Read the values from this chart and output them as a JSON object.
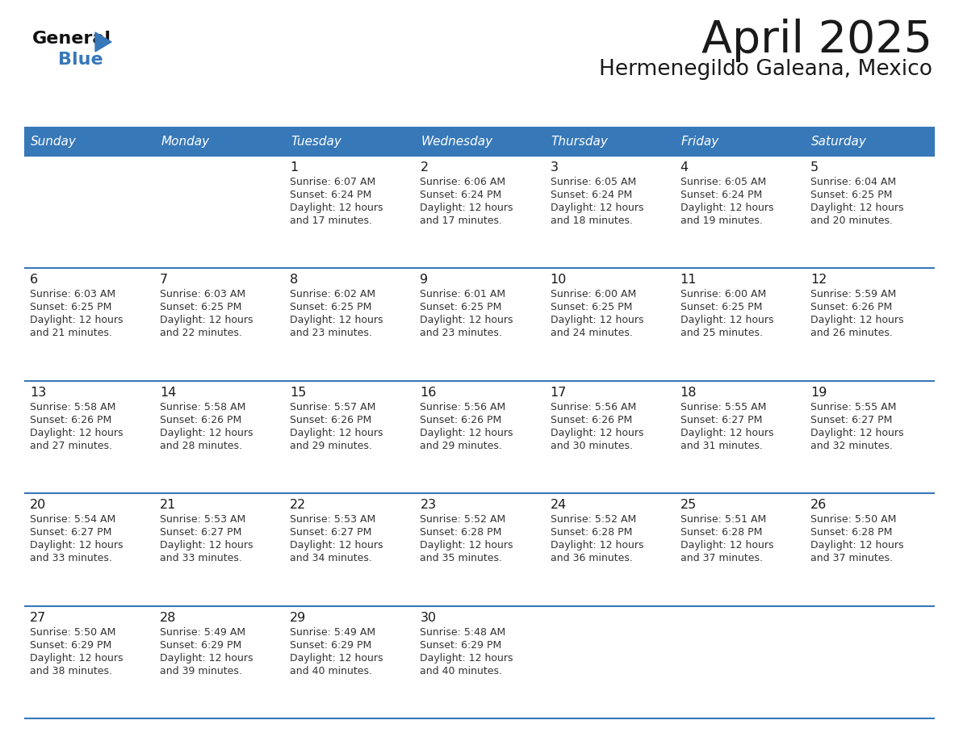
{
  "title": "April 2025",
  "subtitle": "Hermenegildo Galeana, Mexico",
  "header_bg_color": "#3778b8",
  "header_text_color": "#ffffff",
  "days_of_week": [
    "Sunday",
    "Monday",
    "Tuesday",
    "Wednesday",
    "Thursday",
    "Friday",
    "Saturday"
  ],
  "calendar_data": [
    [
      {
        "day": "",
        "sunrise": "",
        "sunset": "",
        "daylight": ""
      },
      {
        "day": "",
        "sunrise": "",
        "sunset": "",
        "daylight": ""
      },
      {
        "day": "1",
        "sunrise": "Sunrise: 6:07 AM",
        "sunset": "Sunset: 6:24 PM",
        "daylight": "Daylight: 12 hours\nand 17 minutes."
      },
      {
        "day": "2",
        "sunrise": "Sunrise: 6:06 AM",
        "sunset": "Sunset: 6:24 PM",
        "daylight": "Daylight: 12 hours\nand 17 minutes."
      },
      {
        "day": "3",
        "sunrise": "Sunrise: 6:05 AM",
        "sunset": "Sunset: 6:24 PM",
        "daylight": "Daylight: 12 hours\nand 18 minutes."
      },
      {
        "day": "4",
        "sunrise": "Sunrise: 6:05 AM",
        "sunset": "Sunset: 6:24 PM",
        "daylight": "Daylight: 12 hours\nand 19 minutes."
      },
      {
        "day": "5",
        "sunrise": "Sunrise: 6:04 AM",
        "sunset": "Sunset: 6:25 PM",
        "daylight": "Daylight: 12 hours\nand 20 minutes."
      }
    ],
    [
      {
        "day": "6",
        "sunrise": "Sunrise: 6:03 AM",
        "sunset": "Sunset: 6:25 PM",
        "daylight": "Daylight: 12 hours\nand 21 minutes."
      },
      {
        "day": "7",
        "sunrise": "Sunrise: 6:03 AM",
        "sunset": "Sunset: 6:25 PM",
        "daylight": "Daylight: 12 hours\nand 22 minutes."
      },
      {
        "day": "8",
        "sunrise": "Sunrise: 6:02 AM",
        "sunset": "Sunset: 6:25 PM",
        "daylight": "Daylight: 12 hours\nand 23 minutes."
      },
      {
        "day": "9",
        "sunrise": "Sunrise: 6:01 AM",
        "sunset": "Sunset: 6:25 PM",
        "daylight": "Daylight: 12 hours\nand 23 minutes."
      },
      {
        "day": "10",
        "sunrise": "Sunrise: 6:00 AM",
        "sunset": "Sunset: 6:25 PM",
        "daylight": "Daylight: 12 hours\nand 24 minutes."
      },
      {
        "day": "11",
        "sunrise": "Sunrise: 6:00 AM",
        "sunset": "Sunset: 6:25 PM",
        "daylight": "Daylight: 12 hours\nand 25 minutes."
      },
      {
        "day": "12",
        "sunrise": "Sunrise: 5:59 AM",
        "sunset": "Sunset: 6:26 PM",
        "daylight": "Daylight: 12 hours\nand 26 minutes."
      }
    ],
    [
      {
        "day": "13",
        "sunrise": "Sunrise: 5:58 AM",
        "sunset": "Sunset: 6:26 PM",
        "daylight": "Daylight: 12 hours\nand 27 minutes."
      },
      {
        "day": "14",
        "sunrise": "Sunrise: 5:58 AM",
        "sunset": "Sunset: 6:26 PM",
        "daylight": "Daylight: 12 hours\nand 28 minutes."
      },
      {
        "day": "15",
        "sunrise": "Sunrise: 5:57 AM",
        "sunset": "Sunset: 6:26 PM",
        "daylight": "Daylight: 12 hours\nand 29 minutes."
      },
      {
        "day": "16",
        "sunrise": "Sunrise: 5:56 AM",
        "sunset": "Sunset: 6:26 PM",
        "daylight": "Daylight: 12 hours\nand 29 minutes."
      },
      {
        "day": "17",
        "sunrise": "Sunrise: 5:56 AM",
        "sunset": "Sunset: 6:26 PM",
        "daylight": "Daylight: 12 hours\nand 30 minutes."
      },
      {
        "day": "18",
        "sunrise": "Sunrise: 5:55 AM",
        "sunset": "Sunset: 6:27 PM",
        "daylight": "Daylight: 12 hours\nand 31 minutes."
      },
      {
        "day": "19",
        "sunrise": "Sunrise: 5:55 AM",
        "sunset": "Sunset: 6:27 PM",
        "daylight": "Daylight: 12 hours\nand 32 minutes."
      }
    ],
    [
      {
        "day": "20",
        "sunrise": "Sunrise: 5:54 AM",
        "sunset": "Sunset: 6:27 PM",
        "daylight": "Daylight: 12 hours\nand 33 minutes."
      },
      {
        "day": "21",
        "sunrise": "Sunrise: 5:53 AM",
        "sunset": "Sunset: 6:27 PM",
        "daylight": "Daylight: 12 hours\nand 33 minutes."
      },
      {
        "day": "22",
        "sunrise": "Sunrise: 5:53 AM",
        "sunset": "Sunset: 6:27 PM",
        "daylight": "Daylight: 12 hours\nand 34 minutes."
      },
      {
        "day": "23",
        "sunrise": "Sunrise: 5:52 AM",
        "sunset": "Sunset: 6:28 PM",
        "daylight": "Daylight: 12 hours\nand 35 minutes."
      },
      {
        "day": "24",
        "sunrise": "Sunrise: 5:52 AM",
        "sunset": "Sunset: 6:28 PM",
        "daylight": "Daylight: 12 hours\nand 36 minutes."
      },
      {
        "day": "25",
        "sunrise": "Sunrise: 5:51 AM",
        "sunset": "Sunset: 6:28 PM",
        "daylight": "Daylight: 12 hours\nand 37 minutes."
      },
      {
        "day": "26",
        "sunrise": "Sunrise: 5:50 AM",
        "sunset": "Sunset: 6:28 PM",
        "daylight": "Daylight: 12 hours\nand 37 minutes."
      }
    ],
    [
      {
        "day": "27",
        "sunrise": "Sunrise: 5:50 AM",
        "sunset": "Sunset: 6:29 PM",
        "daylight": "Daylight: 12 hours\nand 38 minutes."
      },
      {
        "day": "28",
        "sunrise": "Sunrise: 5:49 AM",
        "sunset": "Sunset: 6:29 PM",
        "daylight": "Daylight: 12 hours\nand 39 minutes."
      },
      {
        "day": "29",
        "sunrise": "Sunrise: 5:49 AM",
        "sunset": "Sunset: 6:29 PM",
        "daylight": "Daylight: 12 hours\nand 40 minutes."
      },
      {
        "day": "30",
        "sunrise": "Sunrise: 5:48 AM",
        "sunset": "Sunset: 6:29 PM",
        "daylight": "Daylight: 12 hours\nand 40 minutes."
      },
      {
        "day": "",
        "sunrise": "",
        "sunset": "",
        "daylight": ""
      },
      {
        "day": "",
        "sunrise": "",
        "sunset": "",
        "daylight": ""
      },
      {
        "day": "",
        "sunrise": "",
        "sunset": "",
        "daylight": ""
      }
    ]
  ],
  "logo_triangle_color": "#3778b8",
  "text_color_dark": "#1a1a1a",
  "divider_color": "#3778b8",
  "cell_text_color": "#333333",
  "cell_bg_color": "#ffffff",
  "alt_row_bg": "#f2f5f8"
}
